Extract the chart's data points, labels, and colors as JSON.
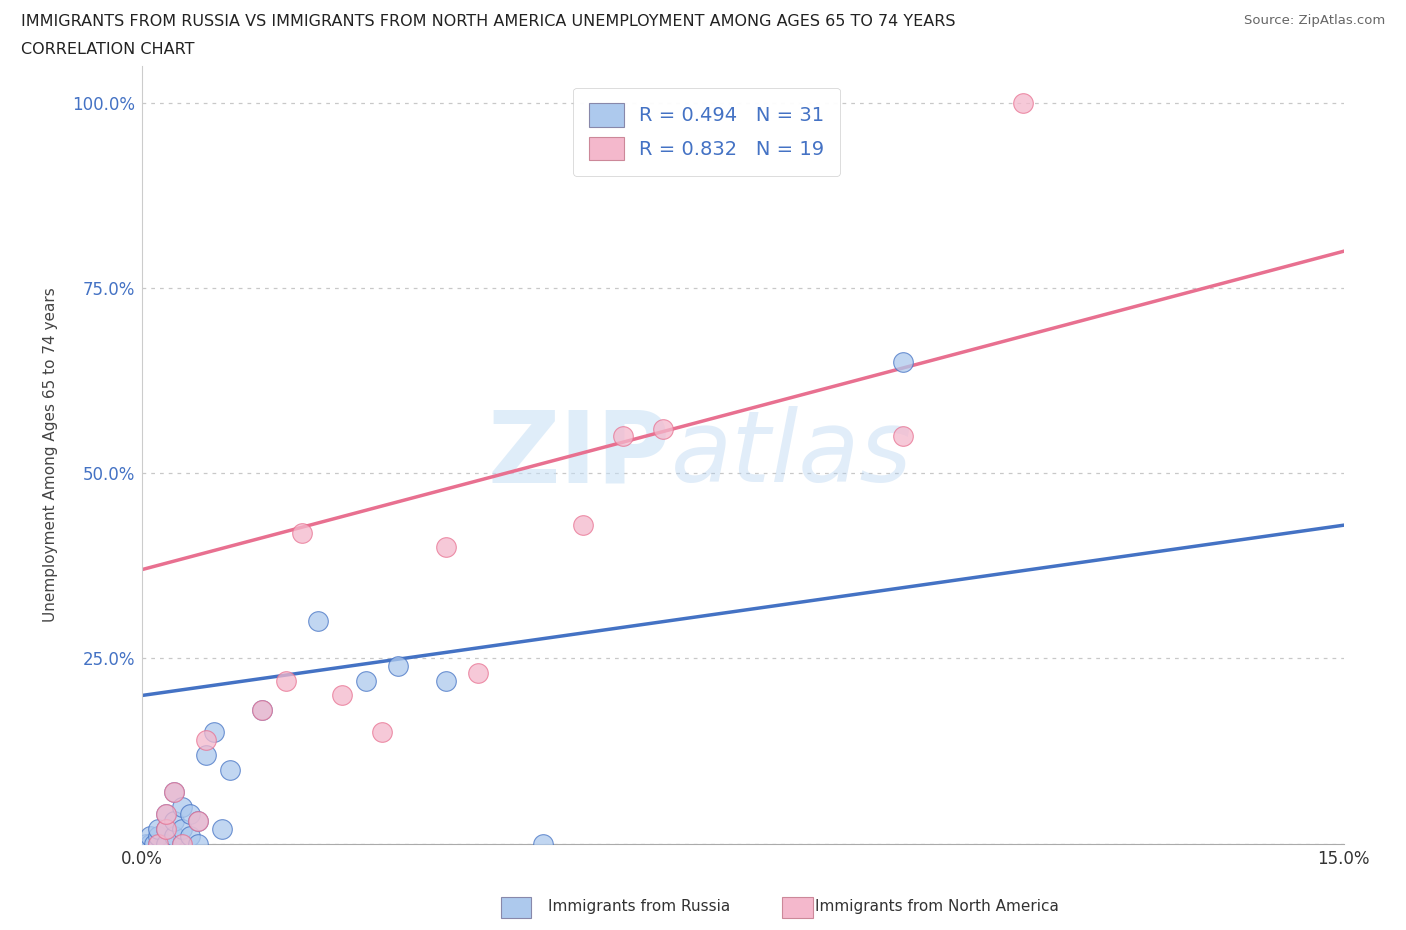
{
  "title_line1": "IMMIGRANTS FROM RUSSIA VS IMMIGRANTS FROM NORTH AMERICA UNEMPLOYMENT AMONG AGES 65 TO 74 YEARS",
  "title_line2": "CORRELATION CHART",
  "source": "Source: ZipAtlas.com",
  "ylabel_label": "Unemployment Among Ages 65 to 74 years",
  "x_min": 0.0,
  "x_max": 0.15,
  "y_min": 0.0,
  "y_max": 1.05,
  "x_ticks": [
    0.0,
    0.03,
    0.06,
    0.09,
    0.12,
    0.15
  ],
  "x_tick_labels": [
    "0.0%",
    "",
    "",
    "",
    "",
    "15.0%"
  ],
  "y_ticks": [
    0.0,
    0.25,
    0.5,
    0.75,
    1.0
  ],
  "y_tick_labels": [
    "",
    "25.0%",
    "50.0%",
    "75.0%",
    "100.0%"
  ],
  "russia_R": 0.494,
  "russia_N": 31,
  "northam_R": 0.832,
  "northam_N": 19,
  "russia_color": "#adc9ed",
  "northam_color": "#f4b8cc",
  "russia_line_color": "#4472c4",
  "northam_line_color": "#e87090",
  "watermark_zip": "ZIP",
  "watermark_atlas": "atlas",
  "russia_x": [
    0.0005,
    0.001,
    0.001,
    0.0015,
    0.002,
    0.002,
    0.002,
    0.003,
    0.003,
    0.003,
    0.004,
    0.004,
    0.004,
    0.005,
    0.005,
    0.005,
    0.006,
    0.006,
    0.007,
    0.007,
    0.008,
    0.009,
    0.01,
    0.011,
    0.015,
    0.022,
    0.028,
    0.032,
    0.038,
    0.05,
    0.095
  ],
  "russia_y": [
    0.0,
    0.0,
    0.01,
    0.0,
    0.0,
    0.01,
    0.02,
    0.0,
    0.02,
    0.04,
    0.01,
    0.03,
    0.07,
    0.0,
    0.02,
    0.05,
    0.01,
    0.04,
    0.0,
    0.03,
    0.12,
    0.15,
    0.02,
    0.1,
    0.18,
    0.3,
    0.22,
    0.24,
    0.22,
    0.0,
    0.65
  ],
  "northam_x": [
    0.002,
    0.003,
    0.003,
    0.004,
    0.005,
    0.007,
    0.008,
    0.015,
    0.018,
    0.02,
    0.025,
    0.03,
    0.038,
    0.042,
    0.055,
    0.06,
    0.065,
    0.095,
    0.11
  ],
  "northam_y": [
    0.0,
    0.02,
    0.04,
    0.07,
    0.0,
    0.03,
    0.14,
    0.18,
    0.22,
    0.42,
    0.2,
    0.15,
    0.4,
    0.23,
    0.43,
    0.55,
    0.56,
    0.55,
    1.0
  ],
  "russia_line_x0": 0.0,
  "russia_line_x1": 0.15,
  "russia_line_y0": 0.2,
  "russia_line_y1": 0.43,
  "northam_line_x0": 0.0,
  "northam_line_x1": 0.15,
  "northam_line_y0": 0.37,
  "northam_line_y1": 0.8
}
